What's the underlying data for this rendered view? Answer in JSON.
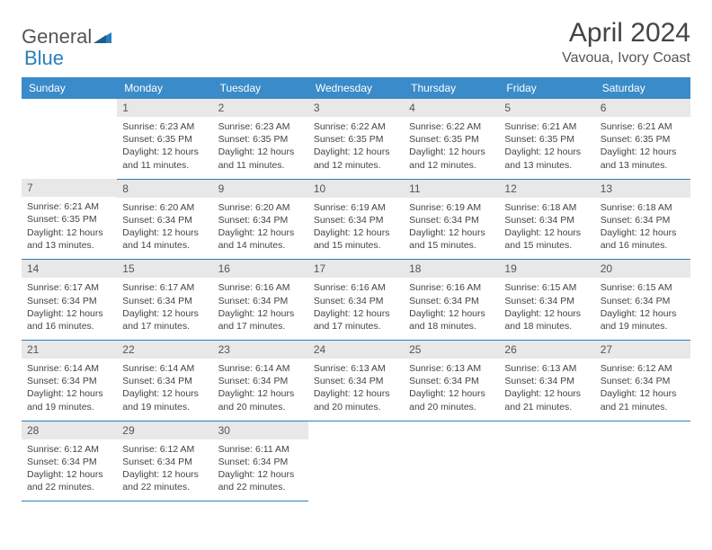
{
  "brand": {
    "part1": "General",
    "part2": "Blue"
  },
  "title": "April 2024",
  "location": "Vavoua, Ivory Coast",
  "colors": {
    "header_bg": "#3a8bc9",
    "accent": "#2a7fba",
    "daynum_bg": "#e8e8e8",
    "text": "#444444"
  },
  "dow": [
    "Sunday",
    "Monday",
    "Tuesday",
    "Wednesday",
    "Thursday",
    "Friday",
    "Saturday"
  ],
  "weeks": [
    [
      null,
      {
        "n": "1",
        "sr": "Sunrise: 6:23 AM",
        "ss": "Sunset: 6:35 PM",
        "dl": "Daylight: 12 hours and 11 minutes."
      },
      {
        "n": "2",
        "sr": "Sunrise: 6:23 AM",
        "ss": "Sunset: 6:35 PM",
        "dl": "Daylight: 12 hours and 11 minutes."
      },
      {
        "n": "3",
        "sr": "Sunrise: 6:22 AM",
        "ss": "Sunset: 6:35 PM",
        "dl": "Daylight: 12 hours and 12 minutes."
      },
      {
        "n": "4",
        "sr": "Sunrise: 6:22 AM",
        "ss": "Sunset: 6:35 PM",
        "dl": "Daylight: 12 hours and 12 minutes."
      },
      {
        "n": "5",
        "sr": "Sunrise: 6:21 AM",
        "ss": "Sunset: 6:35 PM",
        "dl": "Daylight: 12 hours and 13 minutes."
      },
      {
        "n": "6",
        "sr": "Sunrise: 6:21 AM",
        "ss": "Sunset: 6:35 PM",
        "dl": "Daylight: 12 hours and 13 minutes."
      }
    ],
    [
      {
        "n": "7",
        "sr": "Sunrise: 6:21 AM",
        "ss": "Sunset: 6:35 PM",
        "dl": "Daylight: 12 hours and 13 minutes."
      },
      {
        "n": "8",
        "sr": "Sunrise: 6:20 AM",
        "ss": "Sunset: 6:34 PM",
        "dl": "Daylight: 12 hours and 14 minutes."
      },
      {
        "n": "9",
        "sr": "Sunrise: 6:20 AM",
        "ss": "Sunset: 6:34 PM",
        "dl": "Daylight: 12 hours and 14 minutes."
      },
      {
        "n": "10",
        "sr": "Sunrise: 6:19 AM",
        "ss": "Sunset: 6:34 PM",
        "dl": "Daylight: 12 hours and 15 minutes."
      },
      {
        "n": "11",
        "sr": "Sunrise: 6:19 AM",
        "ss": "Sunset: 6:34 PM",
        "dl": "Daylight: 12 hours and 15 minutes."
      },
      {
        "n": "12",
        "sr": "Sunrise: 6:18 AM",
        "ss": "Sunset: 6:34 PM",
        "dl": "Daylight: 12 hours and 15 minutes."
      },
      {
        "n": "13",
        "sr": "Sunrise: 6:18 AM",
        "ss": "Sunset: 6:34 PM",
        "dl": "Daylight: 12 hours and 16 minutes."
      }
    ],
    [
      {
        "n": "14",
        "sr": "Sunrise: 6:17 AM",
        "ss": "Sunset: 6:34 PM",
        "dl": "Daylight: 12 hours and 16 minutes."
      },
      {
        "n": "15",
        "sr": "Sunrise: 6:17 AM",
        "ss": "Sunset: 6:34 PM",
        "dl": "Daylight: 12 hours and 17 minutes."
      },
      {
        "n": "16",
        "sr": "Sunrise: 6:16 AM",
        "ss": "Sunset: 6:34 PM",
        "dl": "Daylight: 12 hours and 17 minutes."
      },
      {
        "n": "17",
        "sr": "Sunrise: 6:16 AM",
        "ss": "Sunset: 6:34 PM",
        "dl": "Daylight: 12 hours and 17 minutes."
      },
      {
        "n": "18",
        "sr": "Sunrise: 6:16 AM",
        "ss": "Sunset: 6:34 PM",
        "dl": "Daylight: 12 hours and 18 minutes."
      },
      {
        "n": "19",
        "sr": "Sunrise: 6:15 AM",
        "ss": "Sunset: 6:34 PM",
        "dl": "Daylight: 12 hours and 18 minutes."
      },
      {
        "n": "20",
        "sr": "Sunrise: 6:15 AM",
        "ss": "Sunset: 6:34 PM",
        "dl": "Daylight: 12 hours and 19 minutes."
      }
    ],
    [
      {
        "n": "21",
        "sr": "Sunrise: 6:14 AM",
        "ss": "Sunset: 6:34 PM",
        "dl": "Daylight: 12 hours and 19 minutes."
      },
      {
        "n": "22",
        "sr": "Sunrise: 6:14 AM",
        "ss": "Sunset: 6:34 PM",
        "dl": "Daylight: 12 hours and 19 minutes."
      },
      {
        "n": "23",
        "sr": "Sunrise: 6:14 AM",
        "ss": "Sunset: 6:34 PM",
        "dl": "Daylight: 12 hours and 20 minutes."
      },
      {
        "n": "24",
        "sr": "Sunrise: 6:13 AM",
        "ss": "Sunset: 6:34 PM",
        "dl": "Daylight: 12 hours and 20 minutes."
      },
      {
        "n": "25",
        "sr": "Sunrise: 6:13 AM",
        "ss": "Sunset: 6:34 PM",
        "dl": "Daylight: 12 hours and 20 minutes."
      },
      {
        "n": "26",
        "sr": "Sunrise: 6:13 AM",
        "ss": "Sunset: 6:34 PM",
        "dl": "Daylight: 12 hours and 21 minutes."
      },
      {
        "n": "27",
        "sr": "Sunrise: 6:12 AM",
        "ss": "Sunset: 6:34 PM",
        "dl": "Daylight: 12 hours and 21 minutes."
      }
    ],
    [
      {
        "n": "28",
        "sr": "Sunrise: 6:12 AM",
        "ss": "Sunset: 6:34 PM",
        "dl": "Daylight: 12 hours and 22 minutes."
      },
      {
        "n": "29",
        "sr": "Sunrise: 6:12 AM",
        "ss": "Sunset: 6:34 PM",
        "dl": "Daylight: 12 hours and 22 minutes."
      },
      {
        "n": "30",
        "sr": "Sunrise: 6:11 AM",
        "ss": "Sunset: 6:34 PM",
        "dl": "Daylight: 12 hours and 22 minutes."
      },
      null,
      null,
      null,
      null
    ]
  ]
}
